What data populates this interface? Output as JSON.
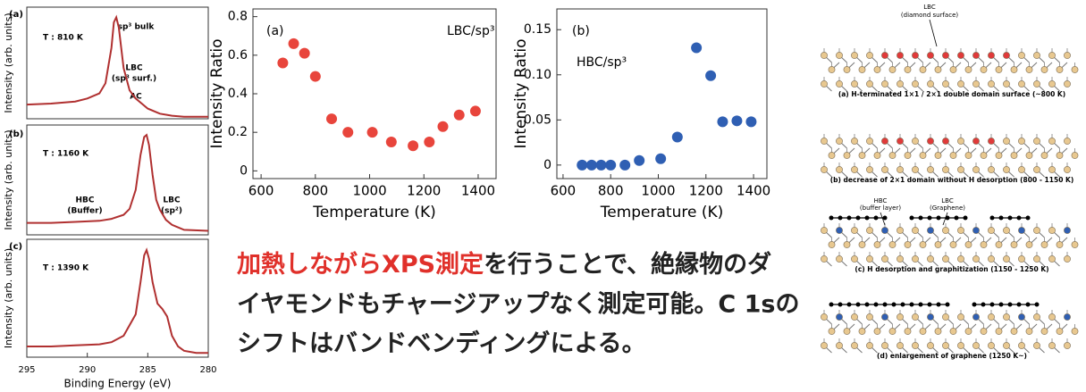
{
  "chart_data": [
    {
      "type": "line",
      "panel": "(a)",
      "ylabel": "Intensity (arb. units)",
      "color": "#b03030",
      "xlim": [
        295,
        280
      ],
      "ylim": [
        0,
        1.1
      ],
      "x": [
        295,
        293,
        291,
        290,
        289,
        288.5,
        288,
        287.8,
        287.6,
        287.4,
        287.2,
        287,
        286.5,
        286,
        285.5,
        285,
        284,
        283,
        282,
        280
      ],
      "values": [
        0.14,
        0.15,
        0.17,
        0.2,
        0.25,
        0.35,
        0.7,
        0.95,
        1.0,
        0.9,
        0.7,
        0.5,
        0.28,
        0.2,
        0.15,
        0.1,
        0.05,
        0.03,
        0.02,
        0.02
      ],
      "annotations": [
        "T : 810 K",
        "sp³ bulk",
        "LBC",
        "(sp³ surf.)",
        "AC"
      ]
    },
    {
      "type": "line",
      "panel": "(b)",
      "ylabel": "Intensity (arb. units)",
      "color": "#b03030",
      "xlim": [
        295,
        280
      ],
      "ylim": [
        0,
        1.1
      ],
      "x": [
        295,
        293,
        291,
        289,
        288,
        287,
        286.5,
        286,
        285.6,
        285.3,
        285.1,
        284.9,
        284.6,
        284.3,
        284,
        283.5,
        283,
        282,
        280
      ],
      "values": [
        0.12,
        0.12,
        0.13,
        0.14,
        0.16,
        0.2,
        0.26,
        0.45,
        0.8,
        0.98,
        1.0,
        0.9,
        0.6,
        0.35,
        0.25,
        0.15,
        0.1,
        0.05,
        0.04
      ],
      "annotations": [
        "T : 1160 K",
        "HBC",
        "(Buffer)",
        "LBC",
        "(sp²)"
      ]
    },
    {
      "type": "line",
      "panel": "(c)",
      "ylabel": "Intensity (arb. units)",
      "xlabel": "Binding Energy (eV)",
      "color": "#b03030",
      "xlim": [
        295,
        280
      ],
      "ylim": [
        0,
        1.1
      ],
      "xticks": [
        295,
        290,
        285,
        280
      ],
      "x": [
        295,
        293,
        291,
        289,
        288,
        287,
        286,
        285.6,
        285.3,
        285.1,
        284.9,
        284.6,
        284.2,
        283.8,
        283.4,
        283,
        282.5,
        282,
        281,
        280
      ],
      "values": [
        0.1,
        0.1,
        0.11,
        0.12,
        0.14,
        0.2,
        0.4,
        0.7,
        0.95,
        1.0,
        0.92,
        0.7,
        0.5,
        0.45,
        0.38,
        0.2,
        0.1,
        0.06,
        0.04,
        0.04
      ],
      "annotations": [
        "T : 1390 K"
      ]
    },
    {
      "type": "scatter",
      "panel": "(a)",
      "ylabel": "Intensity Ratio",
      "xlabel": "Temperature (K)",
      "color": "#e8453c",
      "xlim": [
        570,
        1466
      ],
      "ylim": [
        -0.04,
        0.84
      ],
      "xticks": [
        600,
        800,
        1000,
        1200,
        1400
      ],
      "yticks": [
        0,
        0.2,
        0.4,
        0.6,
        0.8
      ],
      "x": [
        680,
        720,
        760,
        800,
        860,
        920,
        1010,
        1080,
        1160,
        1220,
        1270,
        1330,
        1390
      ],
      "values": [
        0.56,
        0.66,
        0.61,
        0.49,
        0.27,
        0.2,
        0.2,
        0.15,
        0.13,
        0.15,
        0.23,
        0.29,
        0.31
      ],
      "annotations": [
        "LBC/sp³"
      ]
    },
    {
      "type": "scatter",
      "panel": "(b)",
      "ylabel": "Intensity Ratio",
      "xlabel": "Temperature (K)",
      "color": "#2f5fb3",
      "xlim": [
        574,
        1456
      ],
      "ylim": [
        -0.015,
        0.173
      ],
      "xticks": [
        600,
        800,
        1000,
        1200,
        1400
      ],
      "yticks": [
        0,
        0.05,
        {
          "value": 0.1,
          "label": "0.10"
        },
        0.15
      ],
      "x": [
        680,
        720,
        760,
        800,
        860,
        920,
        1010,
        1080,
        1160,
        1220,
        1270,
        1330,
        1390
      ],
      "values": [
        0,
        0,
        0,
        0,
        0,
        0.005,
        0.007,
        0.031,
        0.13,
        0.099,
        0.048,
        0.049,
        0.048
      ],
      "annotations": [
        "HBC/sp³"
      ]
    }
  ],
  "note": {
    "highlight": "加熱しながらXPS測定",
    "lines": [
      "を行うことで、絶縁物のダ",
      "イヤモンドもチャージアップなく測定可能。C 1sの",
      "シフトはバンドベンディングによる。"
    ]
  },
  "diagram": {
    "labels": [
      "LBC",
      "(diamond surface)",
      "HBC",
      "(buffer layer)",
      "LBC",
      "(Graphene)"
    ],
    "captions": [
      "(a) H-terminated 1×1 / 2×1 double domain surface (~800 K)",
      "(b) decrease of 2×1 domain without H desorption (800 - 1150 K)",
      "(c) H desorption and graphitization (1150 - 1250 K)",
      "(d) enlargement of graphene (1250 K~)"
    ]
  }
}
